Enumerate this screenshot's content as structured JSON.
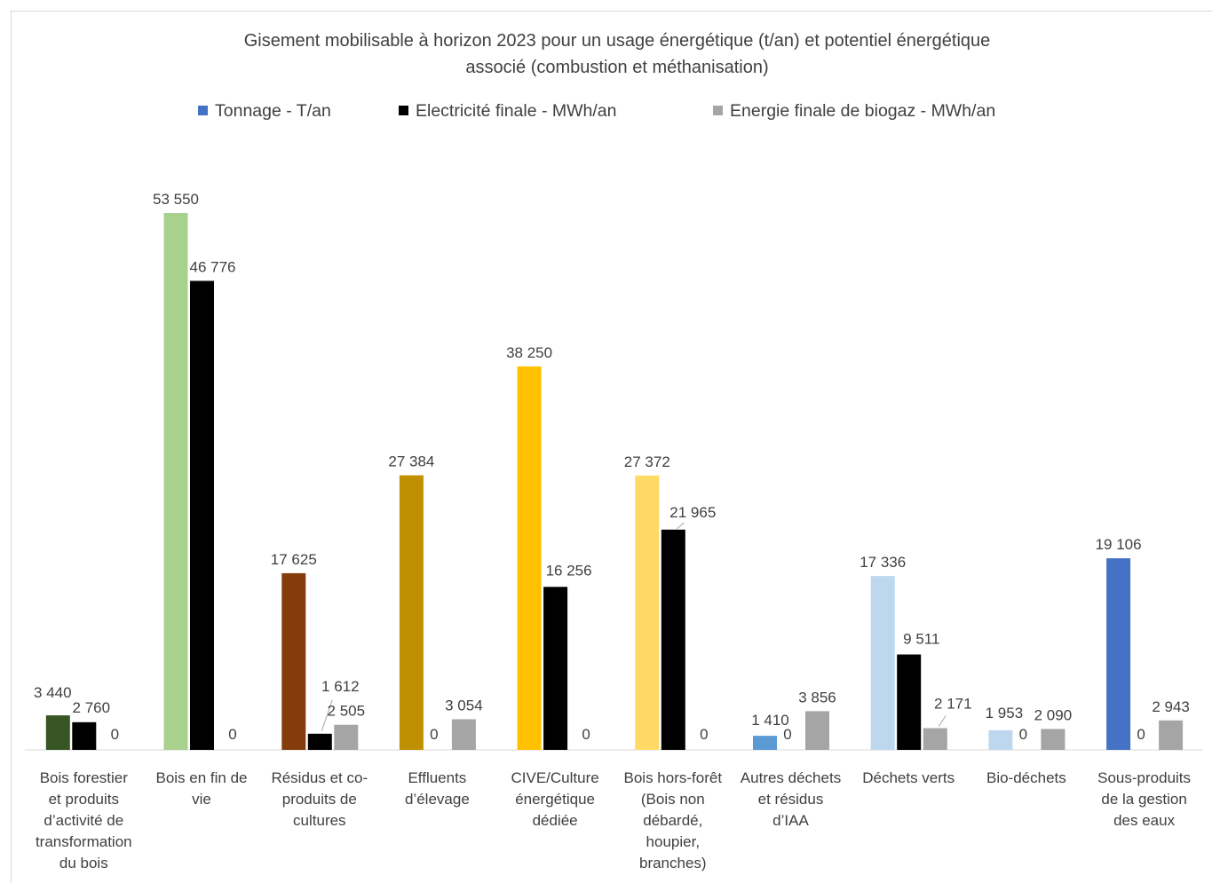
{
  "chart_data": {
    "type": "bar",
    "title": "Gisement mobilisable à horizon 2023 pour un usage énergétique (t/an) et potentiel énergétique associé (combustion et méthanisation)",
    "title_lines": [
      "Gisement mobilisable à horizon 2023 pour un usage énergétique (t/an) et potentiel énergétique",
      "associé (combustion et méthanisation)"
    ],
    "legend_position": "top",
    "grid": false,
    "xlabel": "",
    "ylabel": "",
    "ylim": [
      0,
      56000
    ],
    "categories": [
      "Bois forestier et produits d’activité de transformation du bois",
      "Bois en fin de vie",
      "Résidus et co-produits de cultures",
      "Effluents d’élevage",
      "CIVE/Culture énergétique dédiée",
      "Bois hors-forêt (Bois non débardé, houpier, branches)",
      "Autres déchets et résidus d’IAA",
      "Déchets verts",
      "Bio-déchets",
      "Sous-produits de la gestion des eaux"
    ],
    "category_label_lines": [
      [
        "Bois forestier",
        "et produits",
        "d’activité de",
        "transformation",
        "du bois"
      ],
      [
        "Bois en fin de",
        "vie"
      ],
      [
        "Résidus et co-",
        "produits de",
        "cultures"
      ],
      [
        "Effluents",
        "d’élevage"
      ],
      [
        "CIVE/Culture",
        "énergétique",
        "dédiée"
      ],
      [
        "Bois hors-forêt",
        "(Bois non",
        "débardé,",
        "houpier,",
        "branches)"
      ],
      [
        "Autres déchets",
        "et résidus",
        "d’IAA"
      ],
      [
        "Déchets verts"
      ],
      [
        "Bio-déchets"
      ],
      [
        "Sous-produits",
        "de la gestion",
        "des eaux"
      ]
    ],
    "series": [
      {
        "name": "Tonnage - T/an",
        "legend_color": "#4472c4",
        "values": [
          3440,
          53550,
          17625,
          27384,
          38250,
          27372,
          1410,
          17336,
          1953,
          19106
        ],
        "labels": [
          "3 440",
          "53 550",
          "17 625",
          "27 384",
          "38 250",
          "27 372",
          "1 410",
          "17 336",
          "1 953",
          "19 106"
        ],
        "point_colors": [
          "#375623",
          "#a9d18e",
          "#843c0c",
          "#bf9000",
          "#ffc000",
          "#ffd966",
          "#5b9bd5",
          "#bdd7ee",
          "#bdd7ee",
          "#4472c4"
        ]
      },
      {
        "name": "Electricité finale - MWh/an",
        "legend_color": "#000000",
        "values": [
          2760,
          46776,
          1612,
          0,
          16256,
          21965,
          0,
          9511,
          0,
          0
        ],
        "labels": [
          "2 760",
          "46 776",
          "1 612",
          "",
          "16 256",
          "21 965",
          "",
          "9 511",
          "",
          ""
        ],
        "point_colors": [
          "#000000",
          "#000000",
          "#000000",
          "#000000",
          "#000000",
          "#000000",
          "#000000",
          "#000000",
          "#000000",
          "#000000"
        ]
      },
      {
        "name": "Energie finale de biogaz - MWh/an",
        "legend_color": "#a5a5a5",
        "values": [
          0,
          0,
          2505,
          3054,
          0,
          0,
          3856,
          2171,
          2090,
          2943
        ],
        "labels": [
          "0",
          "0",
          "2 505",
          "3 054",
          "0",
          "0",
          "3 856",
          "2 171",
          "2 090",
          "2 943"
        ],
        "point_colors": [
          "#a5a5a5",
          "#a5a5a5",
          "#a5a5a5",
          "#a5a5a5",
          "#a5a5a5",
          "#a5a5a5",
          "#a5a5a5",
          "#a5a5a5",
          "#a5a5a5",
          "#a5a5a5"
        ]
      }
    ],
    "zero_labels_between": [
      "",
      "",
      "",
      "0",
      "",
      "",
      "0",
      "",
      "0",
      "0"
    ]
  }
}
